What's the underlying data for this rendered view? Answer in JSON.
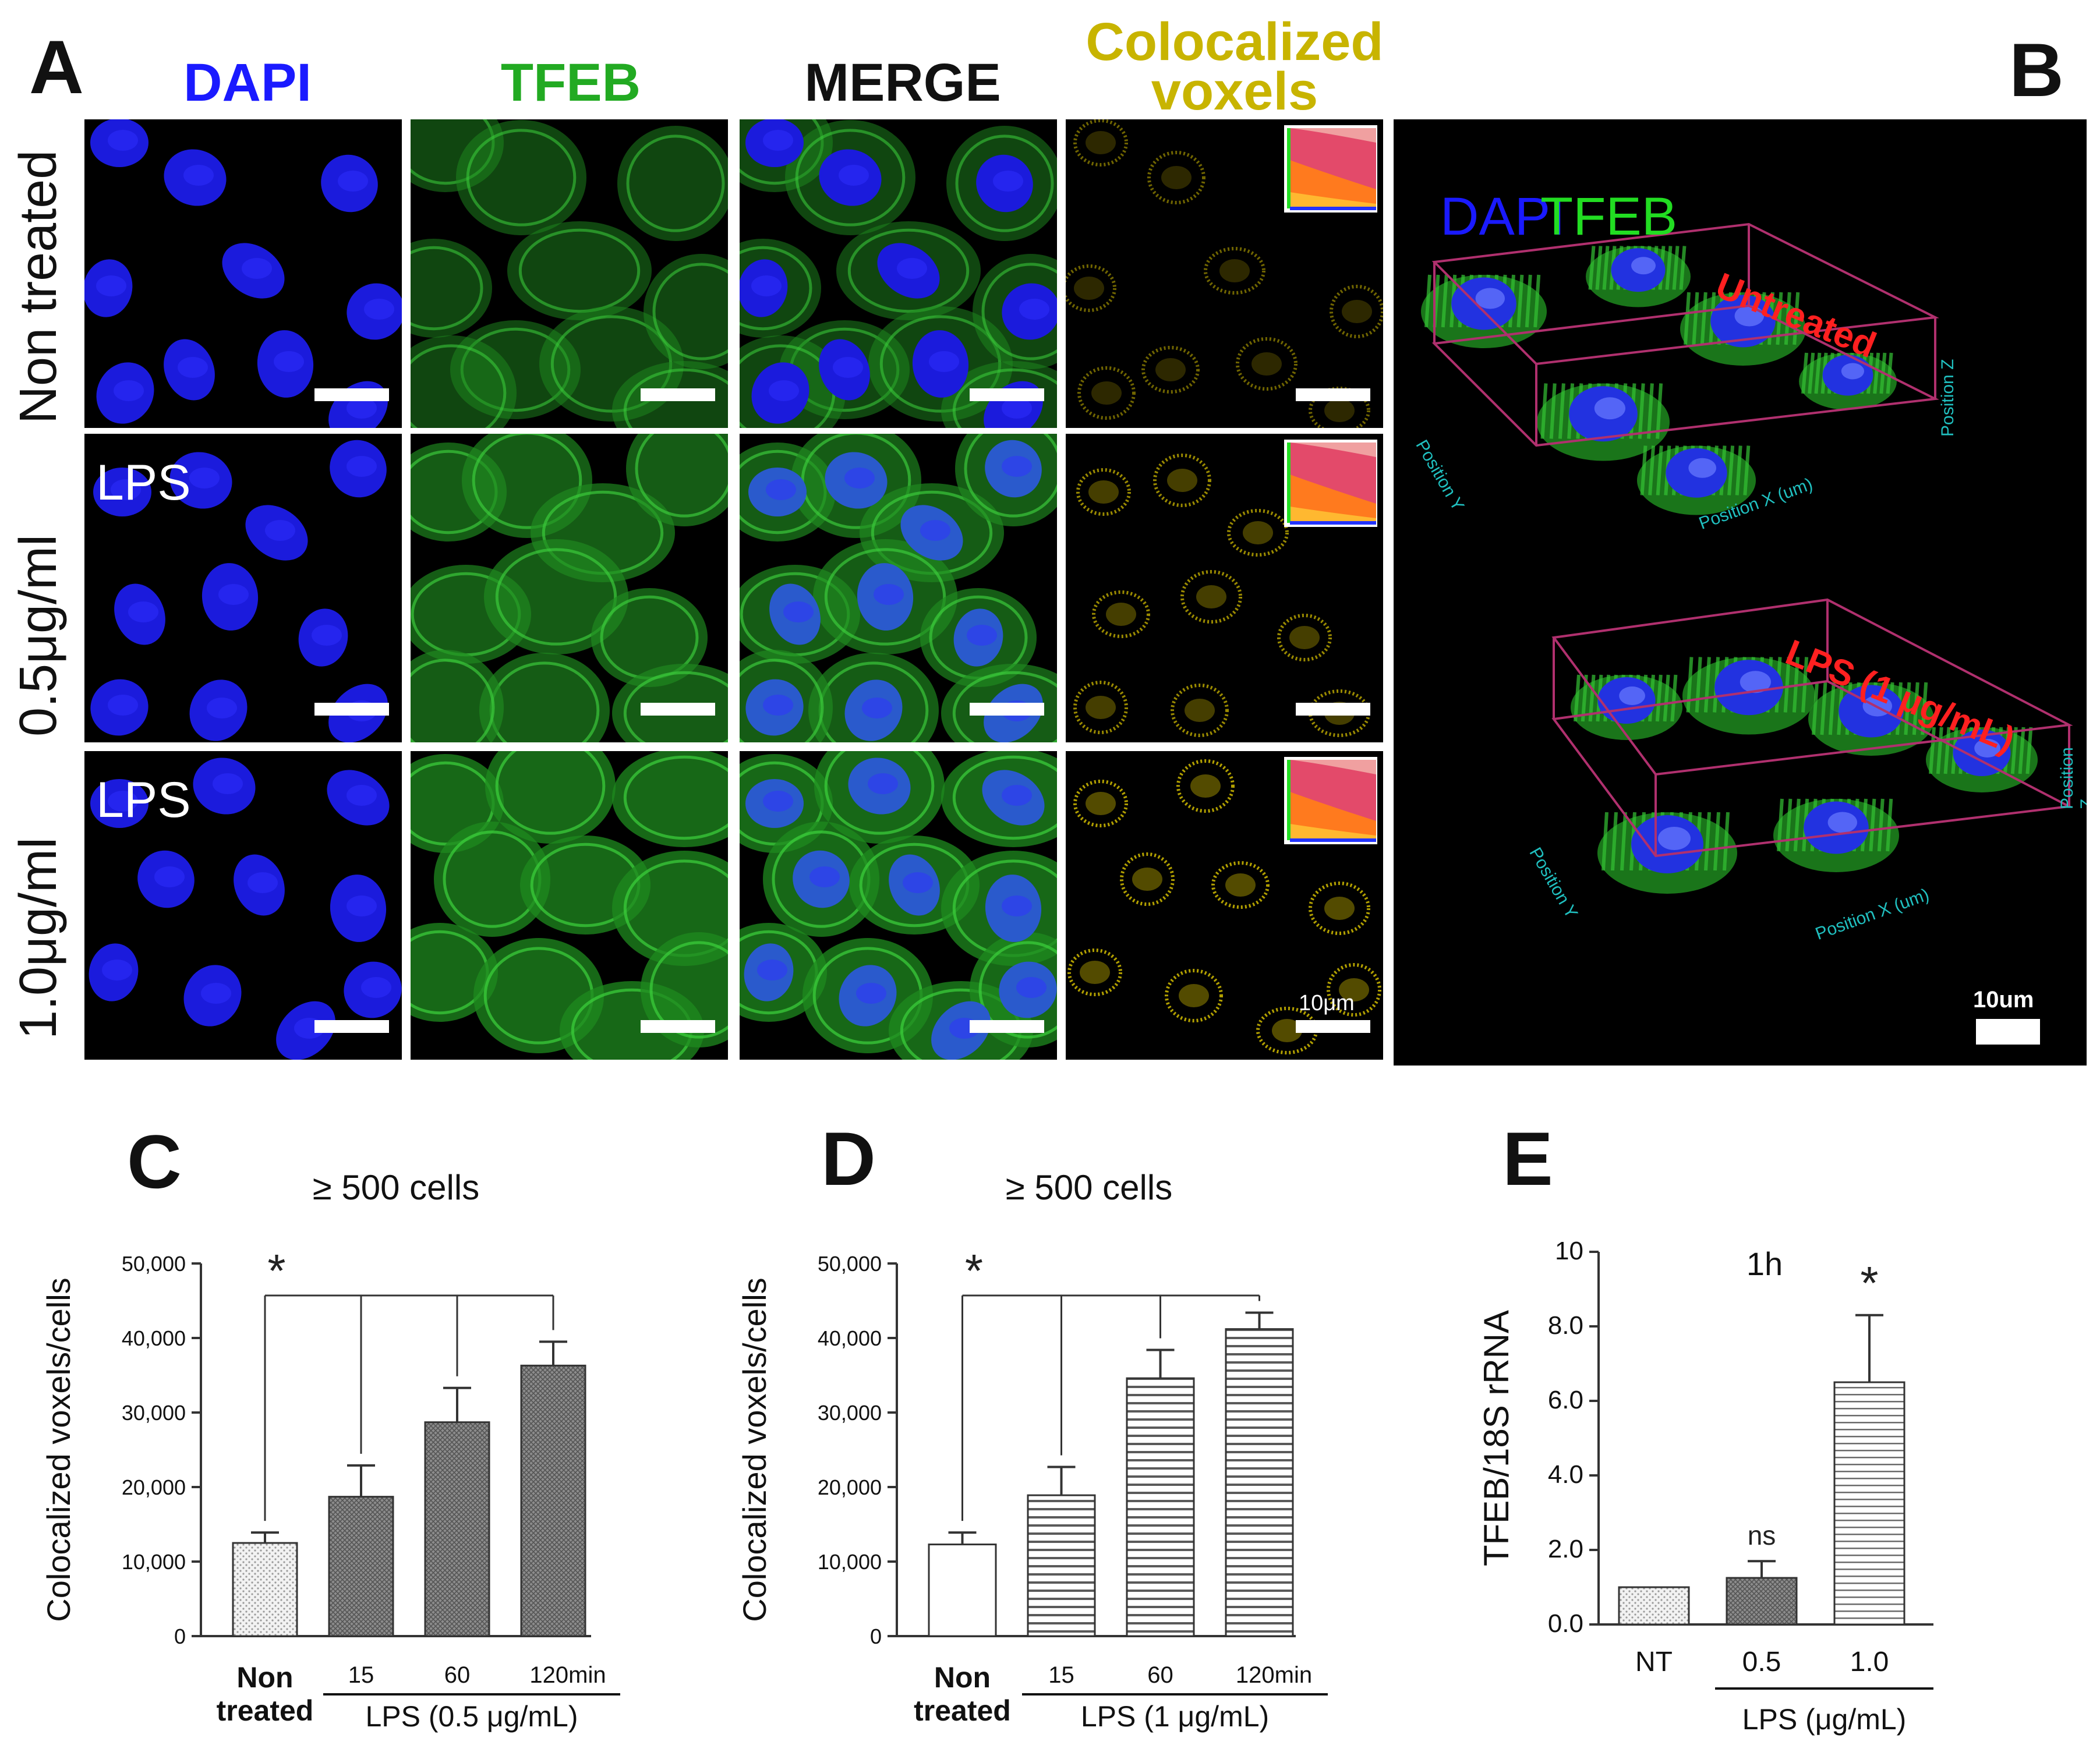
{
  "figure": {
    "panel_letters": [
      "A",
      "B",
      "C",
      "D",
      "E"
    ],
    "panel_a": {
      "column_headers": [
        {
          "text": "DAPI",
          "color": "#1a1aff"
        },
        {
          "text": "TFEB",
          "color": "#22aa22"
        },
        {
          "text": "MERGE",
          "color": "#111111"
        },
        {
          "text": "Colocalized",
          "color": "#c8b400"
        },
        {
          "text": "voxels",
          "color": "#c8b400"
        }
      ],
      "row_labels": [
        "Non treated",
        "0.5μg/ml",
        "1.0μg/ml"
      ],
      "row_tags": [
        "LPS",
        "LPS"
      ],
      "scale_label": "10μm"
    },
    "panel_b": {
      "channel_labels": [
        {
          "text": "DAPI",
          "color": "#1a1aff"
        },
        {
          "text": "TFEB",
          "color": "#22dd22"
        }
      ],
      "condition_labels": [
        "Untreated",
        "LPS (1 μg/mL)"
      ],
      "axis_labels": [
        "Position X (um)",
        "Position Y",
        "Position Z"
      ],
      "scale_label": "10um"
    }
  },
  "chart_data": [
    {
      "type": "bar",
      "panel": "C",
      "title": "≥ 500 cells",
      "ylabel": "Colocalized voxels/cells",
      "ylim": [
        0,
        50000
      ],
      "yticks": [
        "0",
        "10,000",
        "20,000",
        "30,000",
        "40,000",
        "50,000"
      ],
      "categories": [
        "Non treated",
        "15",
        "60",
        "120min"
      ],
      "group_label": "LPS (0.5 μg/mL)",
      "values": [
        12500,
        18700,
        28700,
        36300
      ],
      "errors": [
        1400,
        4200,
        4600,
        3200
      ],
      "significance": "*"
    },
    {
      "type": "bar",
      "panel": "D",
      "title": "≥ 500 cells",
      "ylabel": "Colocalized voxels/cells",
      "ylim": [
        0,
        50000
      ],
      "yticks": [
        "0",
        "10,000",
        "20,000",
        "30,000",
        "40,000",
        "50,000"
      ],
      "categories": [
        "Non treated",
        "15",
        "60",
        "120min"
      ],
      "group_label": "LPS (1 μg/mL)",
      "values": [
        12300,
        18900,
        34600,
        41200
      ],
      "errors": [
        1600,
        3800,
        3800,
        2200
      ],
      "significance": "*"
    },
    {
      "type": "bar",
      "panel": "E",
      "title": "1h",
      "ylabel": "TFEB/18S rRNA",
      "ylim": [
        0,
        10
      ],
      "yticks": [
        "0.0",
        "2.0",
        "4.0",
        "6.0",
        "8.0",
        "10"
      ],
      "categories": [
        "NT",
        "0.5",
        "1.0"
      ],
      "group_label": "LPS (μg/mL)",
      "values": [
        1.0,
        1.25,
        6.5
      ],
      "errors": [
        0,
        0.45,
        1.8
      ],
      "bar_labels": [
        "",
        "ns",
        "*"
      ]
    }
  ]
}
